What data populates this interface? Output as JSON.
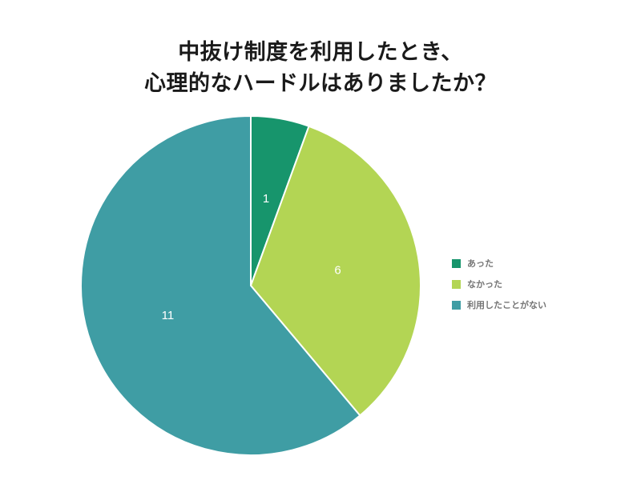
{
  "chart_data": {
    "type": "pie",
    "title": "中抜け制度を利用したとき、 心理的なハードルはありましたか？",
    "title_lines": [
      "中抜け制度を利用したとき、",
      "心理的なハードルはありましたか？"
    ],
    "labels": [
      "あった",
      "なかった",
      "利用したことがない"
    ],
    "values": [
      1,
      6,
      11
    ],
    "slices": [
      {
        "label": "あった",
        "value": 1,
        "color": "#17956c"
      },
      {
        "label": "なかった",
        "value": 6,
        "color": "#b3d554"
      },
      {
        "label": "利用したことがない",
        "value": 11,
        "color": "#3f9da4"
      }
    ],
    "total": 18,
    "legend_position": "right",
    "value_label_color": "#ffffff",
    "slice_border_color": "#ffffff",
    "start_angle_deg": 0,
    "direction": "clockwise",
    "background_color": "#ffffff"
  }
}
